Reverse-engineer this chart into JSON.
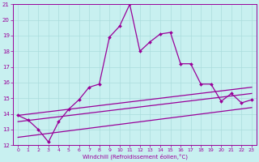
{
  "xlabel": "Windchill (Refroidissement éolien,°C)",
  "bg_color": "#c8f0f0",
  "line_color": "#990099",
  "grid_color": "#aadddd",
  "xlim": [
    -0.5,
    23.5
  ],
  "ylim": [
    12,
    21
  ],
  "xticks": [
    0,
    1,
    2,
    3,
    4,
    5,
    6,
    7,
    8,
    9,
    10,
    11,
    12,
    13,
    14,
    15,
    16,
    17,
    18,
    19,
    20,
    21,
    22,
    23
  ],
  "yticks": [
    12,
    13,
    14,
    15,
    16,
    17,
    18,
    19,
    20,
    21
  ],
  "line1_x": [
    0,
    1,
    2,
    3,
    4,
    5,
    6,
    7,
    8,
    9,
    10,
    11,
    12,
    13,
    14,
    15,
    16,
    17,
    18,
    19,
    20,
    21,
    22,
    23
  ],
  "line1_y": [
    13.9,
    13.6,
    13.0,
    12.2,
    13.5,
    14.3,
    14.9,
    15.7,
    15.9,
    18.9,
    19.6,
    21.0,
    18.0,
    18.6,
    19.1,
    19.2,
    17.2,
    17.2,
    15.9,
    15.9,
    14.8,
    15.3,
    14.7,
    14.9
  ],
  "line2_x": [
    0,
    23
  ],
  "line2_y": [
    13.9,
    15.7
  ],
  "line3_x": [
    0,
    23
  ],
  "line3_y": [
    13.5,
    15.3
  ],
  "line4_x": [
    0,
    23
  ],
  "line4_y": [
    12.5,
    14.4
  ]
}
